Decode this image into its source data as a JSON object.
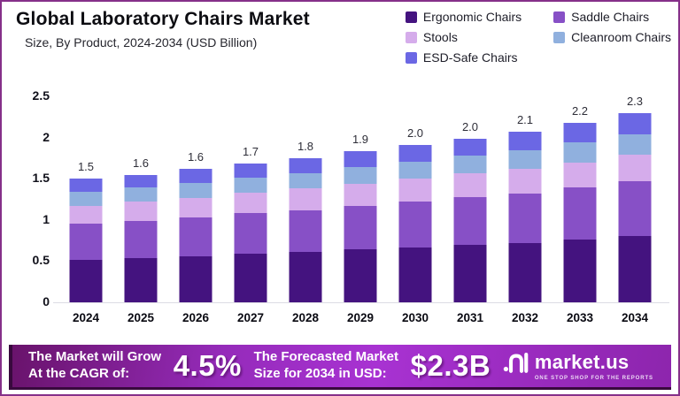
{
  "header": {
    "title": "Global Laboratory Chairs Market",
    "subtitle": "Size, By Product, 2024-2034 (USD Billion)"
  },
  "chart_data": {
    "type": "bar",
    "stacked": true,
    "title": "Global Laboratory Chairs Market",
    "subtitle": "Size, By Product, 2024-2034 (USD Billion)",
    "xlabel": "",
    "ylabel": "USD Billion",
    "ylim": [
      0,
      2.5
    ],
    "yticks": [
      0,
      0.5,
      1,
      1.5,
      2,
      2.5
    ],
    "ytick_labels": [
      "0",
      "0.5",
      "1",
      "1.5",
      "2",
      "2.5"
    ],
    "grid": false,
    "legend_position": "top-right",
    "categories": [
      "2024",
      "2025",
      "2026",
      "2027",
      "2028",
      "2029",
      "2030",
      "2031",
      "2032",
      "2033",
      "2034"
    ],
    "series": [
      {
        "name": "Ergonomic Chairs",
        "color": "#44137f",
        "values": [
          0.52,
          0.54,
          0.56,
          0.59,
          0.61,
          0.64,
          0.67,
          0.7,
          0.72,
          0.76,
          0.81
        ]
      },
      {
        "name": "Saddle Chairs",
        "color": "#8750c6",
        "values": [
          0.43,
          0.45,
          0.47,
          0.49,
          0.51,
          0.53,
          0.55,
          0.58,
          0.6,
          0.63,
          0.66
        ]
      },
      {
        "name": "Stools",
        "color": "#d5aceb",
        "values": [
          0.22,
          0.23,
          0.24,
          0.25,
          0.26,
          0.27,
          0.28,
          0.29,
          0.3,
          0.31,
          0.32
        ]
      },
      {
        "name": "Cleanroom Chairs",
        "color": "#90b0de",
        "values": [
          0.17,
          0.17,
          0.18,
          0.18,
          0.19,
          0.2,
          0.21,
          0.21,
          0.23,
          0.24,
          0.25
        ]
      },
      {
        "name": "ESD-Safe Chairs",
        "color": "#6b67e4",
        "values": [
          0.16,
          0.16,
          0.17,
          0.17,
          0.18,
          0.19,
          0.2,
          0.21,
          0.22,
          0.24,
          0.26
        ]
      }
    ],
    "totals": [
      1.5,
      1.6,
      1.6,
      1.7,
      1.8,
      1.9,
      2.0,
      2.0,
      2.1,
      2.2,
      2.3
    ],
    "total_labels": [
      "1.5",
      "1.6",
      "1.6",
      "1.7",
      "1.8",
      "1.9",
      "2.0",
      "2.0",
      "2.1",
      "2.2",
      "2.3"
    ]
  },
  "banner": {
    "cagr_line1": "The Market will Grow",
    "cagr_line2": "At the CAGR of:",
    "cagr_value": "4.5%",
    "forecast_line1": "The Forecasted Market",
    "forecast_line2": "Size for 2034 in USD:",
    "forecast_value": "$2.3B",
    "brand": "market.us",
    "tagline": "ONE STOP SHOP FOR THE REPORTS"
  },
  "colors": {
    "page_border": "#853089",
    "banner_gradient_start": "#69136b",
    "banner_gradient_mid": "#a832d2",
    "banner_gradient_end": "#8d25ad",
    "banner_shadow": "#38093d",
    "baseline": "#dcdce4",
    "title_text": "#0d0d12"
  }
}
